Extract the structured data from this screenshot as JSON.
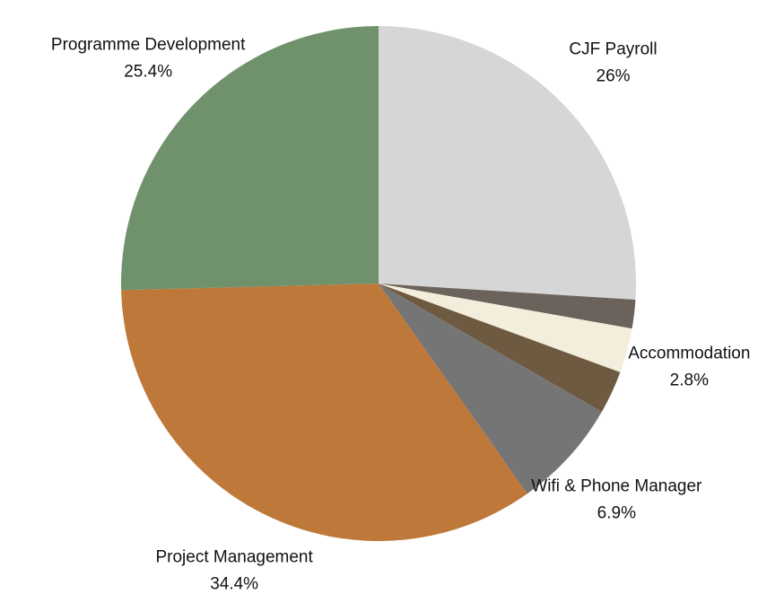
{
  "chart_data": {
    "type": "pie",
    "categories": [
      "CJF Payroll",
      null,
      "Accommodation",
      null,
      "Wifi & Phone Manager",
      "Project Management",
      "Programme Development"
    ],
    "values": [
      26,
      1.8,
      2.8,
      2.7,
      6.9,
      34.4,
      25.4
    ],
    "value_labels": [
      "26%",
      null,
      "2.8%",
      null,
      "6.9%",
      "34.4%",
      "25.4%"
    ],
    "colors": [
      "#d6d6d6",
      "#6b625b",
      "#f3eedb",
      "#6e5a40",
      "#757575",
      "#bd783a",
      "#6f916c"
    ]
  }
}
